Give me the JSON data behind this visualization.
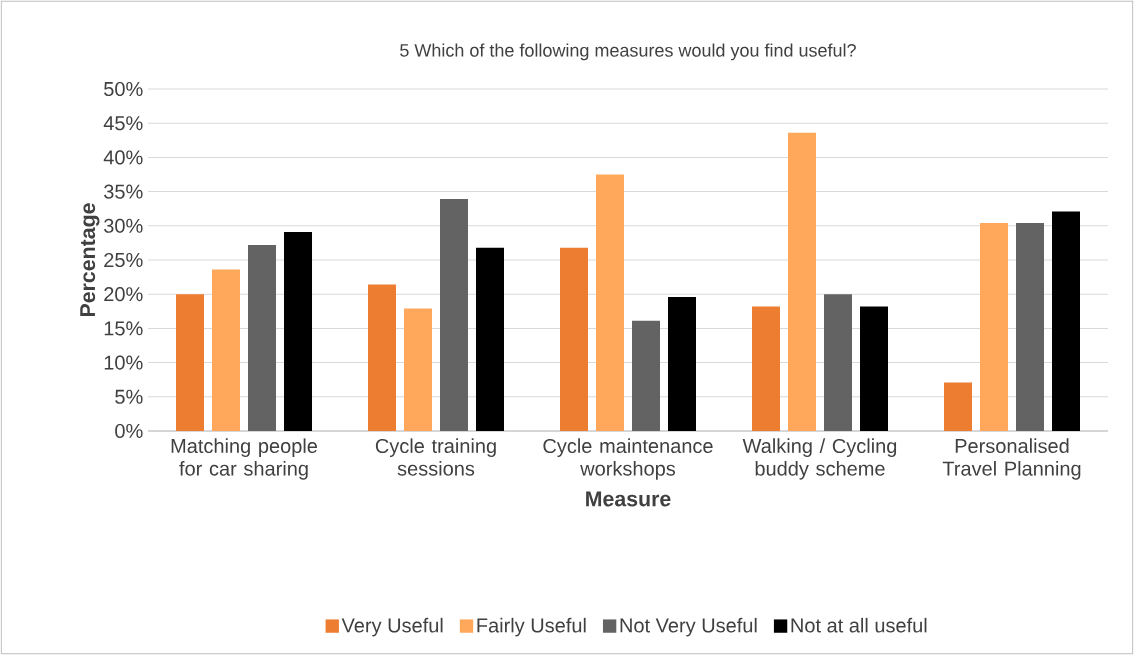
{
  "chart_data": {
    "type": "bar",
    "title": "5 Which of the following measures would you find useful?",
    "xlabel": "Measure",
    "ylabel": "Percentage",
    "categories": [
      "Matching people for car sharing",
      "Cycle training sessions",
      "Cycle maintenance workshops",
      "Walking / Cycling buddy scheme",
      "Personalised Travel Planning"
    ],
    "series": [
      {
        "name": "Very Useful",
        "color": "#ed7d31",
        "values": [
          20.0,
          21.4,
          26.8,
          18.2,
          7.1
        ]
      },
      {
        "name": "Fairly Useful",
        "color": "#ffa85c",
        "values": [
          23.6,
          17.9,
          37.5,
          43.6,
          30.4
        ]
      },
      {
        "name": "Not Very Useful",
        "color": "#636363",
        "values": [
          27.2,
          33.9,
          16.1,
          20.0,
          30.4
        ]
      },
      {
        "name": "Not at all useful",
        "color": "#000000",
        "values": [
          29.1,
          26.8,
          19.6,
          18.2,
          32.1
        ]
      }
    ],
    "ylim": [
      0,
      50
    ],
    "yticks": [
      {
        "value": 0,
        "label": "0%"
      },
      {
        "value": 5,
        "label": "5%"
      },
      {
        "value": 10,
        "label": "10%"
      },
      {
        "value": 15,
        "label": "15%"
      },
      {
        "value": 20,
        "label": "20%"
      },
      {
        "value": 25,
        "label": "25%"
      },
      {
        "value": 30,
        "label": "30%"
      },
      {
        "value": 35,
        "label": "35%"
      },
      {
        "value": 40,
        "label": "40%"
      },
      {
        "value": 45,
        "label": "45%"
      },
      {
        "value": 50,
        "label": "50%"
      }
    ],
    "grid": "y",
    "legend": "bottom"
  }
}
